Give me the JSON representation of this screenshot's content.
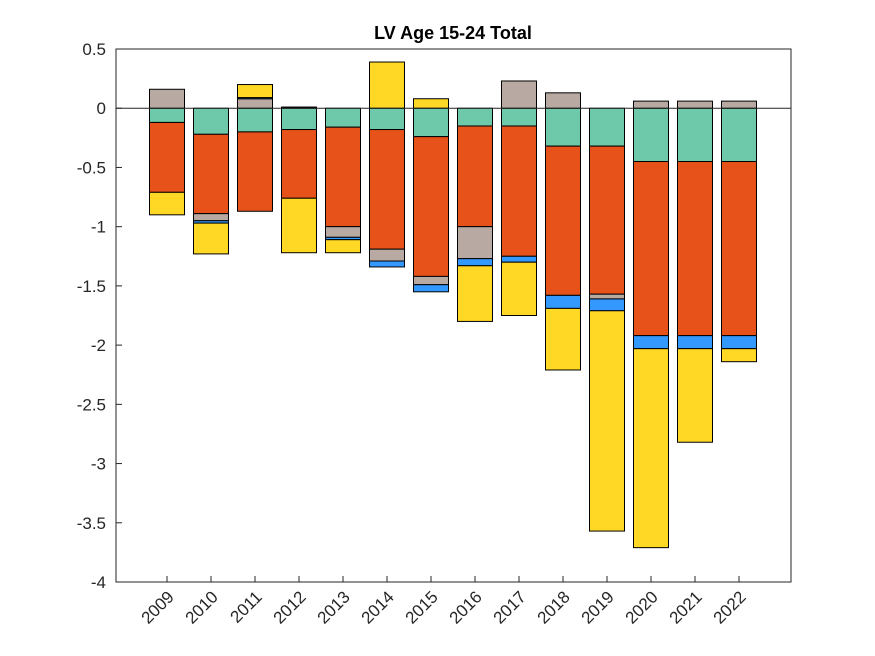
{
  "chart_data": {
    "type": "bar",
    "stacked": true,
    "title": "LV  Age 15-24  Total",
    "xlabel": "",
    "ylabel": "",
    "ylim": [
      -4,
      0.5
    ],
    "yticks": [
      0.5,
      0,
      -0.5,
      -1,
      -1.5,
      -2,
      -2.5,
      -3,
      -3.5,
      -4
    ],
    "ytick_labels": [
      "0.5",
      "0",
      "-0.5",
      "-1",
      "-1.5",
      "-2",
      "-2.5",
      "-3",
      "-3.5",
      "-4"
    ],
    "grid": false,
    "legend": null,
    "categories": [
      "2009",
      "2010",
      "2011",
      "2012",
      "2013",
      "2014",
      "2015",
      "2016",
      "2017",
      "2018",
      "2019",
      "2020",
      "2021",
      "2022"
    ],
    "series": [
      {
        "name": "teal",
        "color": "#6DC9AA",
        "values": [
          -0.12,
          -0.22,
          -0.2,
          -0.18,
          -0.16,
          -0.18,
          -0.24,
          -0.15,
          -0.15,
          -0.32,
          -0.32,
          -0.45,
          -0.45,
          -0.45
        ]
      },
      {
        "name": "orange",
        "color": "#E65219",
        "values": [
          -0.59,
          -0.67,
          -0.67,
          -0.58,
          -0.84,
          -1.01,
          -1.18,
          -0.85,
          -1.1,
          -1.26,
          -1.25,
          -1.47,
          -1.47,
          -1.47
        ]
      },
      {
        "name": "gray",
        "color": "#B8AAA2",
        "values": [
          0.16,
          -0.06,
          0.08,
          0.005,
          -0.09,
          -0.1,
          -0.07,
          -0.27,
          0.23,
          0.13,
          -0.04,
          0.06,
          0.06,
          0.06
        ]
      },
      {
        "name": "blue",
        "color": "#3399FF",
        "values": [
          0.0,
          -0.02,
          0.01,
          0.005,
          -0.02,
          -0.05,
          -0.06,
          -0.06,
          -0.05,
          -0.11,
          -0.1,
          -0.11,
          -0.11,
          -0.11
        ]
      },
      {
        "name": "yellow",
        "color": "#FFD826",
        "values": [
          -0.19,
          -0.26,
          0.11,
          -0.46,
          -0.11,
          0.39,
          0.08,
          -0.47,
          -0.45,
          -0.52,
          -1.86,
          -1.68,
          -0.79,
          -0.11
        ]
      }
    ],
    "zero_line": true
  }
}
